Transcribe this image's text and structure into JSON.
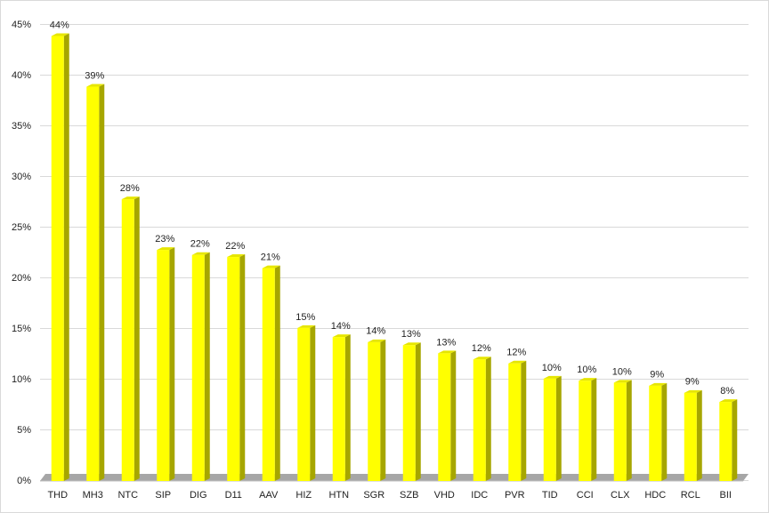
{
  "chart_data": {
    "type": "bar",
    "categories": [
      "THD",
      "MH3",
      "NTC",
      "SIP",
      "DIG",
      "D11",
      "AAV",
      "HIZ",
      "HTN",
      "SGR",
      "SZB",
      "VHD",
      "IDC",
      "PVR",
      "TID",
      "CCI",
      "CLX",
      "HDC",
      "RCL",
      "BII"
    ],
    "values": [
      43.9,
      38.9,
      27.8,
      22.8,
      22.3,
      22.1,
      21.0,
      15.1,
      14.2,
      13.7,
      13.4,
      12.6,
      12.0,
      11.6,
      10.1,
      9.9,
      9.7,
      9.4,
      8.7,
      7.8
    ],
    "value_labels": [
      "44%",
      "39%",
      "28%",
      "23%",
      "22%",
      "22%",
      "21%",
      "15%",
      "14%",
      "14%",
      "13%",
      "13%",
      "12%",
      "12%",
      "10%",
      "10%",
      "10%",
      "9%",
      "9%",
      "8%"
    ],
    "color": "#ffff00",
    "ylim": [
      0,
      45
    ],
    "yticks": [
      {
        "value": 0,
        "label": "0%"
      },
      {
        "value": 5,
        "label": "5%"
      },
      {
        "value": 10,
        "label": "10%"
      },
      {
        "value": 15,
        "label": "15%"
      },
      {
        "value": 20,
        "label": "20%"
      },
      {
        "value": 25,
        "label": "25%"
      },
      {
        "value": 30,
        "label": "30%"
      },
      {
        "value": 35,
        "label": "35%"
      },
      {
        "value": 40,
        "label": "40%"
      },
      {
        "value": 45,
        "label": "45%"
      }
    ],
    "grid": true
  }
}
